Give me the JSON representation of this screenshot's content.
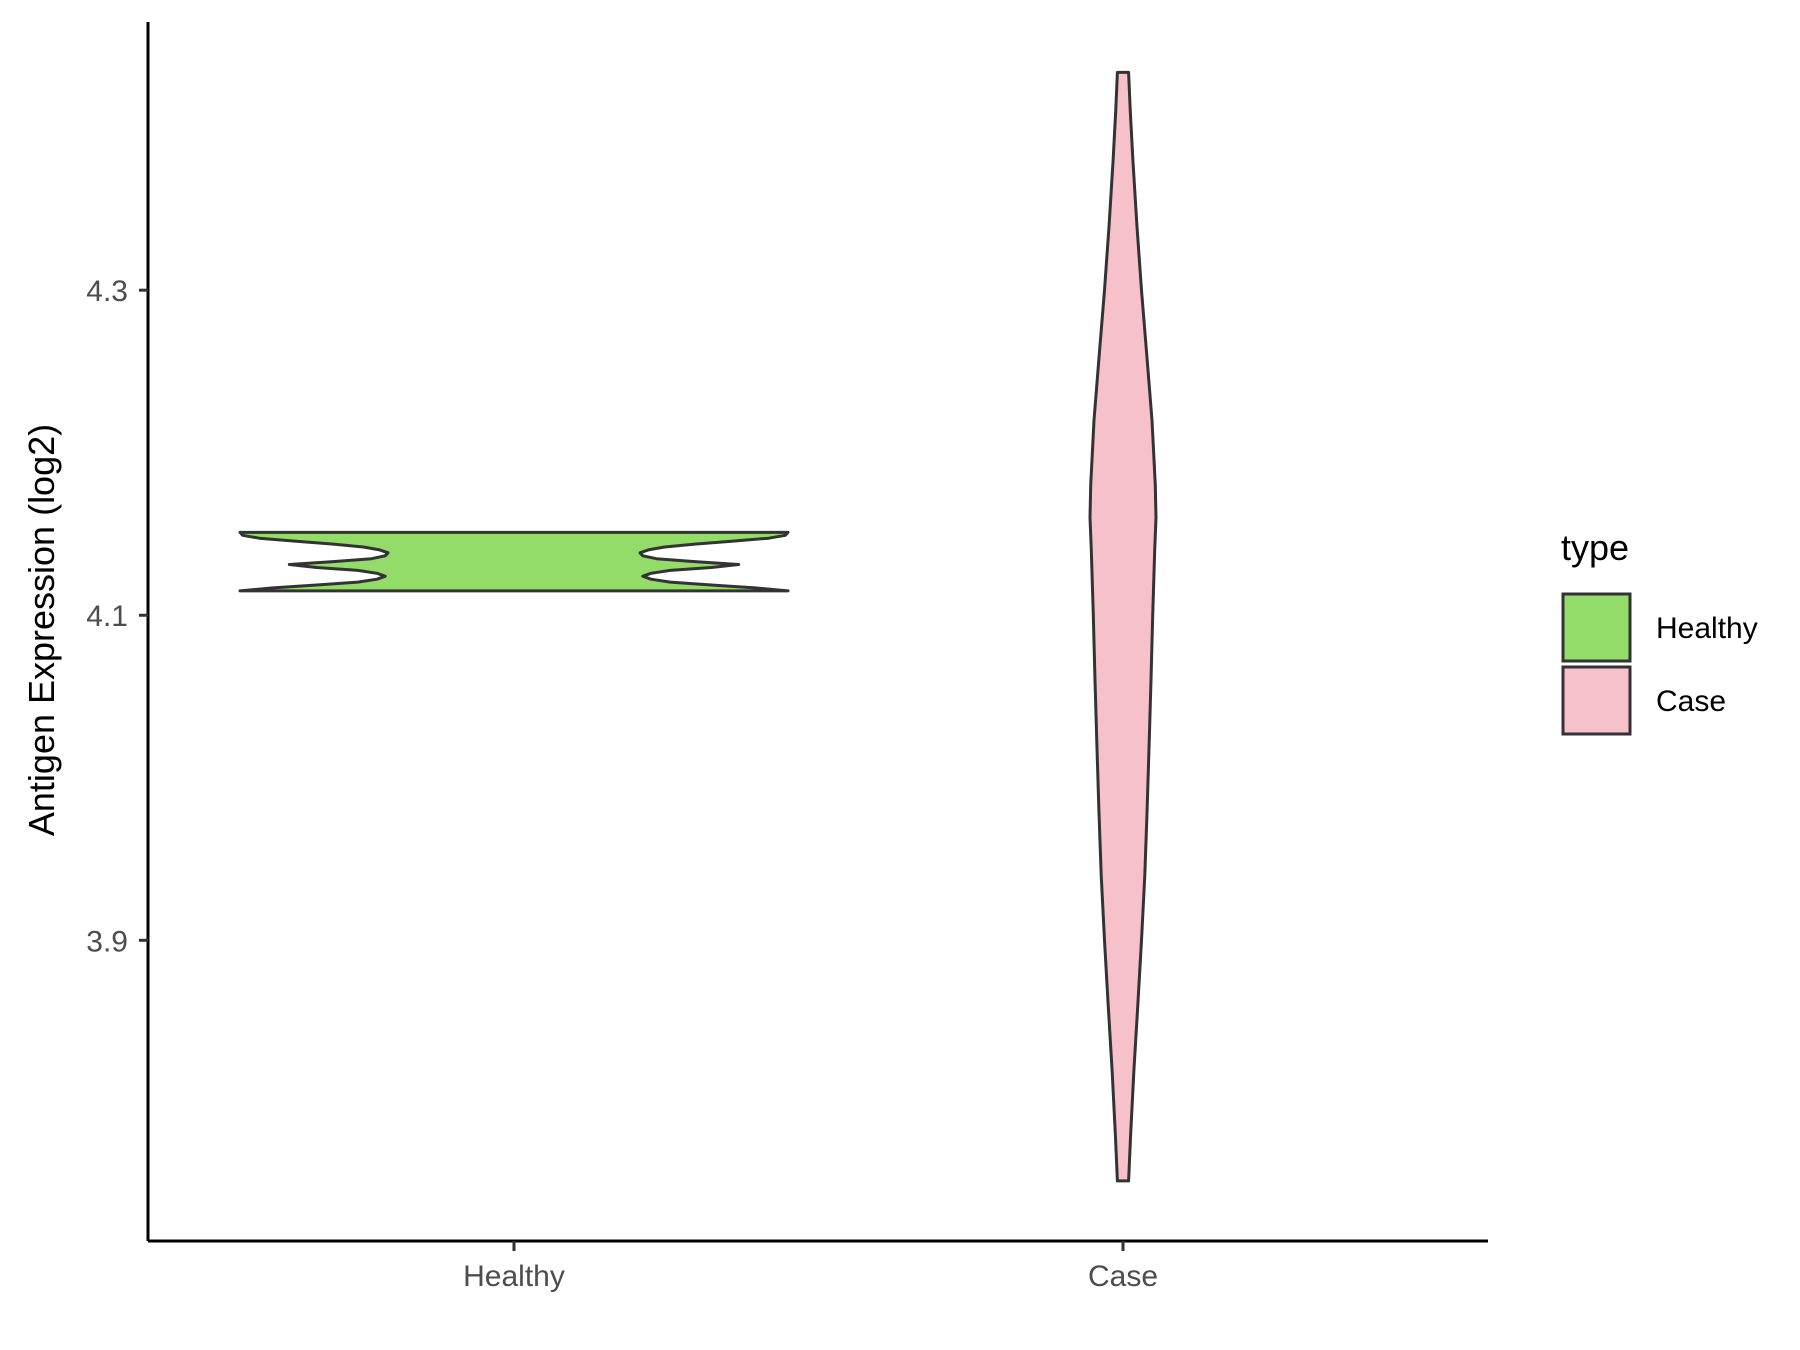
{
  "chart_data": {
    "type": "violin",
    "title": "",
    "xlabel": "",
    "ylabel": "Antigen Expression (log2)",
    "ylim": [
      3.715,
      4.465
    ],
    "yticks": [
      3.9,
      4.1,
      4.3
    ],
    "ytick_labels": [
      "3.9",
      "4.1",
      "4.3"
    ],
    "categories": [
      "Healthy",
      "Case"
    ],
    "legend": {
      "title": "type",
      "position": "right",
      "entries": [
        {
          "label": "Healthy",
          "color": "#93DC6A"
        },
        {
          "label": "Case",
          "color": "#F7C1CB"
        }
      ]
    },
    "series": [
      {
        "name": "Healthy",
        "color": "#93DC6A",
        "y_min": 4.115,
        "y_max": 4.151,
        "density_profile": [
          {
            "y": 4.115,
            "w": 1.0
          },
          {
            "y": 4.1168,
            "w": 0.88
          },
          {
            "y": 4.1186,
            "w": 0.72
          },
          {
            "y": 4.1204,
            "w": 0.57
          },
          {
            "y": 4.1222,
            "w": 0.5
          },
          {
            "y": 4.124,
            "w": 0.47
          },
          {
            "y": 4.1258,
            "w": 0.5
          },
          {
            "y": 4.1276,
            "w": 0.57
          },
          {
            "y": 4.1294,
            "w": 0.72
          },
          {
            "y": 4.1312,
            "w": 0.82
          },
          {
            "y": 4.133,
            "w": 0.66
          },
          {
            "y": 4.1348,
            "w": 0.52
          },
          {
            "y": 4.1366,
            "w": 0.47
          },
          {
            "y": 4.1384,
            "w": 0.46
          },
          {
            "y": 4.1402,
            "w": 0.49
          },
          {
            "y": 4.142,
            "w": 0.55
          },
          {
            "y": 4.1438,
            "w": 0.66
          },
          {
            "y": 4.1456,
            "w": 0.8
          },
          {
            "y": 4.1474,
            "w": 0.93
          },
          {
            "y": 4.1492,
            "w": 0.99
          },
          {
            "y": 4.151,
            "w": 1.0
          }
        ]
      },
      {
        "name": "Case",
        "color": "#F7C1CB",
        "y_min": 3.752,
        "y_max": 4.434,
        "density_profile": [
          {
            "y": 3.752,
            "w": 0.17
          },
          {
            "y": 3.78,
            "w": 0.23
          },
          {
            "y": 3.82,
            "w": 0.33
          },
          {
            "y": 3.86,
            "w": 0.45
          },
          {
            "y": 3.9,
            "w": 0.56
          },
          {
            "y": 3.94,
            "w": 0.66
          },
          {
            "y": 3.98,
            "w": 0.73
          },
          {
            "y": 4.02,
            "w": 0.79
          },
          {
            "y": 4.06,
            "w": 0.85
          },
          {
            "y": 4.1,
            "w": 0.9
          },
          {
            "y": 4.14,
            "w": 0.96
          },
          {
            "y": 4.16,
            "w": 1.0
          },
          {
            "y": 4.18,
            "w": 0.98
          },
          {
            "y": 4.22,
            "w": 0.88
          },
          {
            "y": 4.26,
            "w": 0.72
          },
          {
            "y": 4.3,
            "w": 0.56
          },
          {
            "y": 4.34,
            "w": 0.42
          },
          {
            "y": 4.38,
            "w": 0.3
          },
          {
            "y": 4.41,
            "w": 0.22
          },
          {
            "y": 4.434,
            "w": 0.17
          }
        ]
      }
    ]
  }
}
